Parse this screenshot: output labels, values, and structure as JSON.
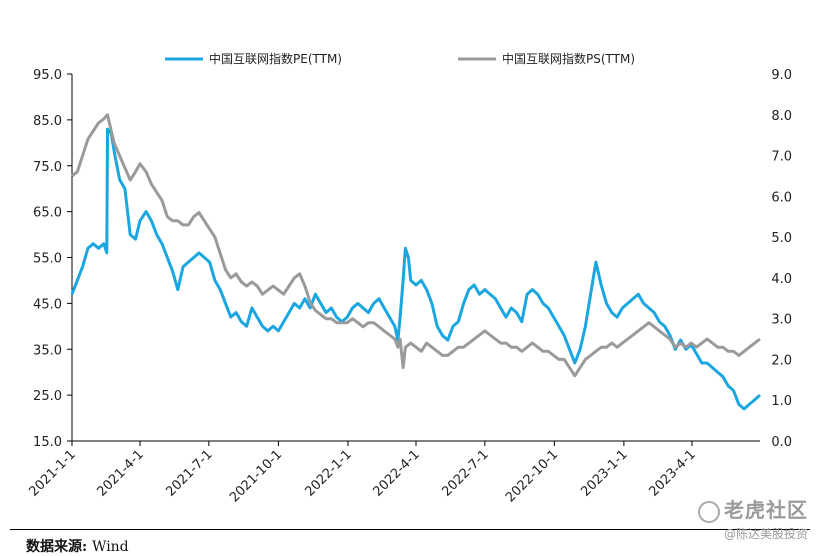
{
  "chart_data": {
    "type": "line",
    "legend_position": "top",
    "grid": false,
    "series": [
      {
        "name": "中国互联网指数PE(TTM)",
        "axis": "left",
        "color": "#1aa6e0",
        "points": [
          [
            "2021-01-01",
            47
          ],
          [
            "2021-01-08",
            50
          ],
          [
            "2021-01-15",
            53
          ],
          [
            "2021-01-22",
            57
          ],
          [
            "2021-01-29",
            58
          ],
          [
            "2021-02-05",
            57
          ],
          [
            "2021-02-12",
            58
          ],
          [
            "2021-02-16",
            56
          ],
          [
            "2021-02-17",
            83
          ],
          [
            "2021-02-22",
            82
          ],
          [
            "2021-02-26",
            78
          ],
          [
            "2021-03-05",
            72
          ],
          [
            "2021-03-12",
            70
          ],
          [
            "2021-03-19",
            60
          ],
          [
            "2021-03-26",
            59
          ],
          [
            "2021-04-01",
            63
          ],
          [
            "2021-04-09",
            65
          ],
          [
            "2021-04-16",
            63
          ],
          [
            "2021-04-23",
            60
          ],
          [
            "2021-04-30",
            58
          ],
          [
            "2021-05-07",
            55
          ],
          [
            "2021-05-14",
            52
          ],
          [
            "2021-05-21",
            48
          ],
          [
            "2021-05-28",
            53
          ],
          [
            "2021-06-04",
            54
          ],
          [
            "2021-06-11",
            55
          ],
          [
            "2021-06-18",
            56
          ],
          [
            "2021-06-25",
            55
          ],
          [
            "2021-07-02",
            54
          ],
          [
            "2021-07-09",
            50
          ],
          [
            "2021-07-16",
            48
          ],
          [
            "2021-07-23",
            45
          ],
          [
            "2021-07-30",
            42
          ],
          [
            "2021-08-06",
            43
          ],
          [
            "2021-08-13",
            41
          ],
          [
            "2021-08-20",
            40
          ],
          [
            "2021-08-27",
            44
          ],
          [
            "2021-09-03",
            42
          ],
          [
            "2021-09-10",
            40
          ],
          [
            "2021-09-17",
            39
          ],
          [
            "2021-09-24",
            40
          ],
          [
            "2021-10-01",
            39
          ],
          [
            "2021-10-08",
            41
          ],
          [
            "2021-10-15",
            43
          ],
          [
            "2021-10-22",
            45
          ],
          [
            "2021-10-29",
            44
          ],
          [
            "2021-11-05",
            46
          ],
          [
            "2021-11-12",
            44
          ],
          [
            "2021-11-19",
            47
          ],
          [
            "2021-11-26",
            45
          ],
          [
            "2021-12-03",
            43
          ],
          [
            "2021-12-10",
            44
          ],
          [
            "2021-12-17",
            42
          ],
          [
            "2021-12-24",
            41
          ],
          [
            "2021-12-31",
            42
          ],
          [
            "2022-01-07",
            44
          ],
          [
            "2022-01-14",
            45
          ],
          [
            "2022-01-21",
            44
          ],
          [
            "2022-01-28",
            43
          ],
          [
            "2022-02-04",
            45
          ],
          [
            "2022-02-11",
            46
          ],
          [
            "2022-02-18",
            44
          ],
          [
            "2022-02-25",
            42
          ],
          [
            "2022-03-04",
            40
          ],
          [
            "2022-03-08",
            37
          ],
          [
            "2022-03-11",
            42
          ],
          [
            "2022-03-15",
            50
          ],
          [
            "2022-03-18",
            57
          ],
          [
            "2022-03-22",
            55
          ],
          [
            "2022-03-25",
            50
          ],
          [
            "2022-04-01",
            49
          ],
          [
            "2022-04-08",
            50
          ],
          [
            "2022-04-15",
            48
          ],
          [
            "2022-04-22",
            45
          ],
          [
            "2022-04-29",
            40
          ],
          [
            "2022-05-06",
            38
          ],
          [
            "2022-05-13",
            37
          ],
          [
            "2022-05-20",
            40
          ],
          [
            "2022-05-27",
            41
          ],
          [
            "2022-06-03",
            45
          ],
          [
            "2022-06-10",
            48
          ],
          [
            "2022-06-17",
            49
          ],
          [
            "2022-06-24",
            47
          ],
          [
            "2022-07-01",
            48
          ],
          [
            "2022-07-08",
            47
          ],
          [
            "2022-07-15",
            46
          ],
          [
            "2022-07-22",
            44
          ],
          [
            "2022-07-29",
            42
          ],
          [
            "2022-08-05",
            44
          ],
          [
            "2022-08-12",
            43
          ],
          [
            "2022-08-19",
            41
          ],
          [
            "2022-08-26",
            47
          ],
          [
            "2022-09-02",
            48
          ],
          [
            "2022-09-09",
            47
          ],
          [
            "2022-09-16",
            45
          ],
          [
            "2022-09-23",
            44
          ],
          [
            "2022-09-30",
            42
          ],
          [
            "2022-10-07",
            40
          ],
          [
            "2022-10-14",
            38
          ],
          [
            "2022-10-21",
            35
          ],
          [
            "2022-10-28",
            32
          ],
          [
            "2022-11-04",
            35
          ],
          [
            "2022-11-11",
            40
          ],
          [
            "2022-11-18",
            47
          ],
          [
            "2022-11-25",
            54
          ],
          [
            "2022-12-02",
            49
          ],
          [
            "2022-12-09",
            45
          ],
          [
            "2022-12-16",
            43
          ],
          [
            "2022-12-23",
            42
          ],
          [
            "2022-12-30",
            44
          ],
          [
            "2023-01-06",
            45
          ],
          [
            "2023-01-13",
            46
          ],
          [
            "2023-01-20",
            47
          ],
          [
            "2023-01-27",
            45
          ],
          [
            "2023-02-03",
            44
          ],
          [
            "2023-02-10",
            43
          ],
          [
            "2023-02-17",
            41
          ],
          [
            "2023-02-24",
            40
          ],
          [
            "2023-03-03",
            38
          ],
          [
            "2023-03-10",
            35
          ],
          [
            "2023-03-17",
            37
          ],
          [
            "2023-03-24",
            35
          ],
          [
            "2023-03-31",
            36
          ],
          [
            "2023-04-07",
            34
          ],
          [
            "2023-04-14",
            32
          ],
          [
            "2023-04-21",
            32
          ],
          [
            "2023-04-28",
            31
          ],
          [
            "2023-05-05",
            30
          ],
          [
            "2023-05-12",
            29
          ],
          [
            "2023-05-19",
            27
          ],
          [
            "2023-05-26",
            26
          ],
          [
            "2023-06-02",
            23
          ],
          [
            "2023-06-09",
            22
          ],
          [
            "2023-06-16",
            23
          ],
          [
            "2023-06-23",
            24
          ],
          [
            "2023-06-30",
            25
          ]
        ]
      },
      {
        "name": "中国互联网指数PS(TTM)",
        "axis": "right",
        "color": "#9a9a9a",
        "points": [
          [
            "2021-01-01",
            6.5
          ],
          [
            "2021-01-08",
            6.6
          ],
          [
            "2021-01-15",
            7.0
          ],
          [
            "2021-01-22",
            7.4
          ],
          [
            "2021-01-29",
            7.6
          ],
          [
            "2021-02-05",
            7.8
          ],
          [
            "2021-02-12",
            7.9
          ],
          [
            "2021-02-17",
            8.0
          ],
          [
            "2021-02-22",
            7.6
          ],
          [
            "2021-02-26",
            7.3
          ],
          [
            "2021-03-05",
            7.0
          ],
          [
            "2021-03-12",
            6.7
          ],
          [
            "2021-03-19",
            6.4
          ],
          [
            "2021-03-26",
            6.6
          ],
          [
            "2021-04-01",
            6.8
          ],
          [
            "2021-04-09",
            6.6
          ],
          [
            "2021-04-16",
            6.3
          ],
          [
            "2021-04-23",
            6.1
          ],
          [
            "2021-04-30",
            5.9
          ],
          [
            "2021-05-07",
            5.5
          ],
          [
            "2021-05-14",
            5.4
          ],
          [
            "2021-05-21",
            5.4
          ],
          [
            "2021-05-28",
            5.3
          ],
          [
            "2021-06-04",
            5.3
          ],
          [
            "2021-06-11",
            5.5
          ],
          [
            "2021-06-18",
            5.6
          ],
          [
            "2021-06-25",
            5.4
          ],
          [
            "2021-07-02",
            5.2
          ],
          [
            "2021-07-09",
            5.0
          ],
          [
            "2021-07-16",
            4.6
          ],
          [
            "2021-07-23",
            4.2
          ],
          [
            "2021-07-30",
            4.0
          ],
          [
            "2021-08-06",
            4.1
          ],
          [
            "2021-08-13",
            3.9
          ],
          [
            "2021-08-20",
            3.8
          ],
          [
            "2021-08-27",
            3.9
          ],
          [
            "2021-09-03",
            3.8
          ],
          [
            "2021-09-10",
            3.6
          ],
          [
            "2021-09-17",
            3.7
          ],
          [
            "2021-09-24",
            3.8
          ],
          [
            "2021-10-01",
            3.7
          ],
          [
            "2021-10-08",
            3.6
          ],
          [
            "2021-10-15",
            3.8
          ],
          [
            "2021-10-22",
            4.0
          ],
          [
            "2021-10-29",
            4.1
          ],
          [
            "2021-11-05",
            3.8
          ],
          [
            "2021-11-12",
            3.4
          ],
          [
            "2021-11-19",
            3.2
          ],
          [
            "2021-11-26",
            3.1
          ],
          [
            "2021-12-03",
            3.0
          ],
          [
            "2021-12-10",
            3.0
          ],
          [
            "2021-12-17",
            2.9
          ],
          [
            "2021-12-24",
            2.9
          ],
          [
            "2021-12-31",
            2.9
          ],
          [
            "2022-01-07",
            3.0
          ],
          [
            "2022-01-14",
            2.9
          ],
          [
            "2022-01-21",
            2.8
          ],
          [
            "2022-01-28",
            2.9
          ],
          [
            "2022-02-04",
            2.9
          ],
          [
            "2022-02-11",
            2.8
          ],
          [
            "2022-02-18",
            2.7
          ],
          [
            "2022-02-25",
            2.6
          ],
          [
            "2022-03-04",
            2.5
          ],
          [
            "2022-03-08",
            2.3
          ],
          [
            "2022-03-11",
            2.5
          ],
          [
            "2022-03-15",
            1.8
          ],
          [
            "2022-03-18",
            2.3
          ],
          [
            "2022-03-25",
            2.4
          ],
          [
            "2022-04-01",
            2.3
          ],
          [
            "2022-04-08",
            2.2
          ],
          [
            "2022-04-15",
            2.4
          ],
          [
            "2022-04-22",
            2.3
          ],
          [
            "2022-04-29",
            2.2
          ],
          [
            "2022-05-06",
            2.1
          ],
          [
            "2022-05-13",
            2.1
          ],
          [
            "2022-05-20",
            2.2
          ],
          [
            "2022-05-27",
            2.3
          ],
          [
            "2022-06-03",
            2.3
          ],
          [
            "2022-06-10",
            2.4
          ],
          [
            "2022-06-17",
            2.5
          ],
          [
            "2022-06-24",
            2.6
          ],
          [
            "2022-07-01",
            2.7
          ],
          [
            "2022-07-08",
            2.6
          ],
          [
            "2022-07-15",
            2.5
          ],
          [
            "2022-07-22",
            2.4
          ],
          [
            "2022-07-29",
            2.4
          ],
          [
            "2022-08-05",
            2.3
          ],
          [
            "2022-08-12",
            2.3
          ],
          [
            "2022-08-19",
            2.2
          ],
          [
            "2022-08-26",
            2.3
          ],
          [
            "2022-09-02",
            2.4
          ],
          [
            "2022-09-09",
            2.3
          ],
          [
            "2022-09-16",
            2.2
          ],
          [
            "2022-09-23",
            2.2
          ],
          [
            "2022-09-30",
            2.1
          ],
          [
            "2022-10-07",
            2.0
          ],
          [
            "2022-10-14",
            2.0
          ],
          [
            "2022-10-21",
            1.8
          ],
          [
            "2022-10-28",
            1.6
          ],
          [
            "2022-11-04",
            1.8
          ],
          [
            "2022-11-11",
            2.0
          ],
          [
            "2022-11-18",
            2.1
          ],
          [
            "2022-11-25",
            2.2
          ],
          [
            "2022-12-02",
            2.3
          ],
          [
            "2022-12-09",
            2.3
          ],
          [
            "2022-12-16",
            2.4
          ],
          [
            "2022-12-23",
            2.3
          ],
          [
            "2022-12-30",
            2.4
          ],
          [
            "2023-01-06",
            2.5
          ],
          [
            "2023-01-13",
            2.6
          ],
          [
            "2023-01-20",
            2.7
          ],
          [
            "2023-01-27",
            2.8
          ],
          [
            "2023-02-03",
            2.9
          ],
          [
            "2023-02-10",
            2.8
          ],
          [
            "2023-02-17",
            2.7
          ],
          [
            "2023-02-24",
            2.6
          ],
          [
            "2023-03-03",
            2.5
          ],
          [
            "2023-03-10",
            2.3
          ],
          [
            "2023-03-17",
            2.4
          ],
          [
            "2023-03-24",
            2.3
          ],
          [
            "2023-03-31",
            2.4
          ],
          [
            "2023-04-07",
            2.3
          ],
          [
            "2023-04-14",
            2.4
          ],
          [
            "2023-04-21",
            2.5
          ],
          [
            "2023-04-28",
            2.4
          ],
          [
            "2023-05-05",
            2.3
          ],
          [
            "2023-05-12",
            2.3
          ],
          [
            "2023-05-19",
            2.2
          ],
          [
            "2023-05-26",
            2.2
          ],
          [
            "2023-06-02",
            2.1
          ],
          [
            "2023-06-09",
            2.2
          ],
          [
            "2023-06-16",
            2.3
          ],
          [
            "2023-06-23",
            2.4
          ],
          [
            "2023-06-30",
            2.5
          ]
        ]
      }
    ],
    "x_range": [
      "2021-01-01",
      "2023-06-30"
    ],
    "x_ticks": [
      "2021-1-1",
      "2021-4-1",
      "2021-7-1",
      "2021-10-1",
      "2022-1-1",
      "2022-4-1",
      "2022-7-1",
      "2022-10-1",
      "2023-1-1",
      "2023-4-1"
    ],
    "y_left": {
      "min": 15,
      "max": 95,
      "ticks": [
        "95.0",
        "85.0",
        "75.0",
        "65.0",
        "55.0",
        "45.0",
        "35.0",
        "25.0",
        "15.0"
      ]
    },
    "y_right": {
      "min": 0,
      "max": 9,
      "ticks": [
        "9.0",
        "8.0",
        "7.0",
        "6.0",
        "5.0",
        "4.0",
        "3.0",
        "2.0",
        "1.0",
        "0.0"
      ]
    }
  },
  "source": {
    "label": "数据来源:",
    "value": "Wind"
  },
  "watermark": {
    "main": "老虎社区",
    "sub": "@陈达美股投资"
  }
}
